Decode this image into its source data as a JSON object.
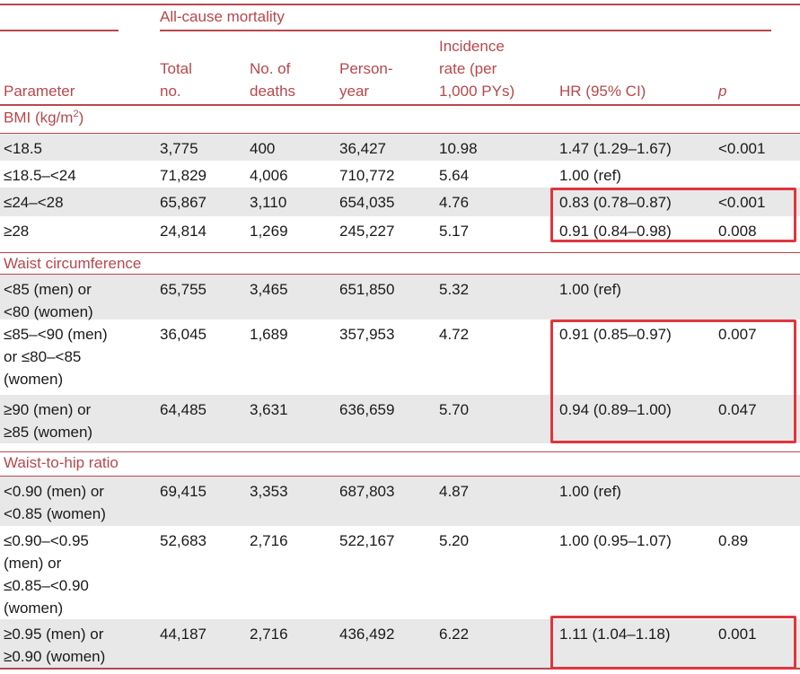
{
  "table": {
    "group_header": "All-cause mortality",
    "columns": [
      "Parameter",
      "Total\nno.",
      "No. of\ndeaths",
      "Person-\nyear",
      "Incidence\nrate (per\n1,000 PYs)",
      "HR (95% CI)",
      "p"
    ],
    "sections": [
      {
        "label": "BMI (kg/m",
        "label_sup": "2",
        "label_tail": ")",
        "rows": [
          {
            "cells": [
              "<18.5",
              "3,775",
              "400",
              "36,427",
              "10.98",
              "1.47 (1.29–1.67)",
              "<0.001"
            ]
          },
          {
            "cells": [
              "≤18.5–<24",
              "71,829",
              "4,006",
              "710,772",
              "5.64",
              "1.00 (ref)",
              ""
            ]
          },
          {
            "cells": [
              "≤24–<28",
              "65,867",
              "3,110",
              "654,035",
              "4.76",
              "0.83 (0.78–0.87)",
              "<0.001"
            ]
          },
          {
            "cells": [
              "≥28",
              "24,814",
              "1,269",
              "245,227",
              "5.17",
              "0.91 (0.84–0.98)",
              "0.008"
            ]
          }
        ]
      },
      {
        "label": "Waist circumference",
        "rows": [
          {
            "cells": [
              "<85 (men) or\n<80 (women)",
              "65,755",
              "3,465",
              "651,850",
              "5.32",
              "1.00 (ref)",
              ""
            ]
          },
          {
            "cells": [
              "≤85–<90 (men)\nor ≤80–<85\n(women)",
              "36,045",
              "1,689",
              "357,953",
              "4.72",
              "0.91 (0.85–0.97)",
              "0.007"
            ]
          },
          {
            "cells": [
              "≥90 (men) or\n≥85 (women)",
              "64,485",
              "3,631",
              "636,659",
              "5.70",
              "0.94 (0.89–1.00)",
              "0.047"
            ]
          }
        ]
      },
      {
        "label": "Waist-to-hip ratio",
        "rows": [
          {
            "cells": [
              "<0.90 (men) or\n<0.85 (women)",
              "69,415",
              "3,353",
              "687,803",
              "4.87",
              "1.00 (ref)",
              ""
            ]
          },
          {
            "cells": [
              "≤0.90–<0.95\n(men) or\n≤0.85–<0.90\n(women)",
              "52,683",
              "2,716",
              "522,167",
              "5.20",
              "1.00 (0.95–1.07)",
              "0.89"
            ]
          },
          {
            "cells": [
              "≥0.95 (men) or\n≥0.90 (women)",
              "44,187",
              "2,716",
              "436,492",
              "6.22",
              "1.11 (1.04–1.18)",
              "0.001"
            ]
          }
        ]
      }
    ]
  },
  "colors": {
    "accent": "#b8474c",
    "row_shade": "#e8e8e8",
    "highlight_box": "#e0353e"
  }
}
